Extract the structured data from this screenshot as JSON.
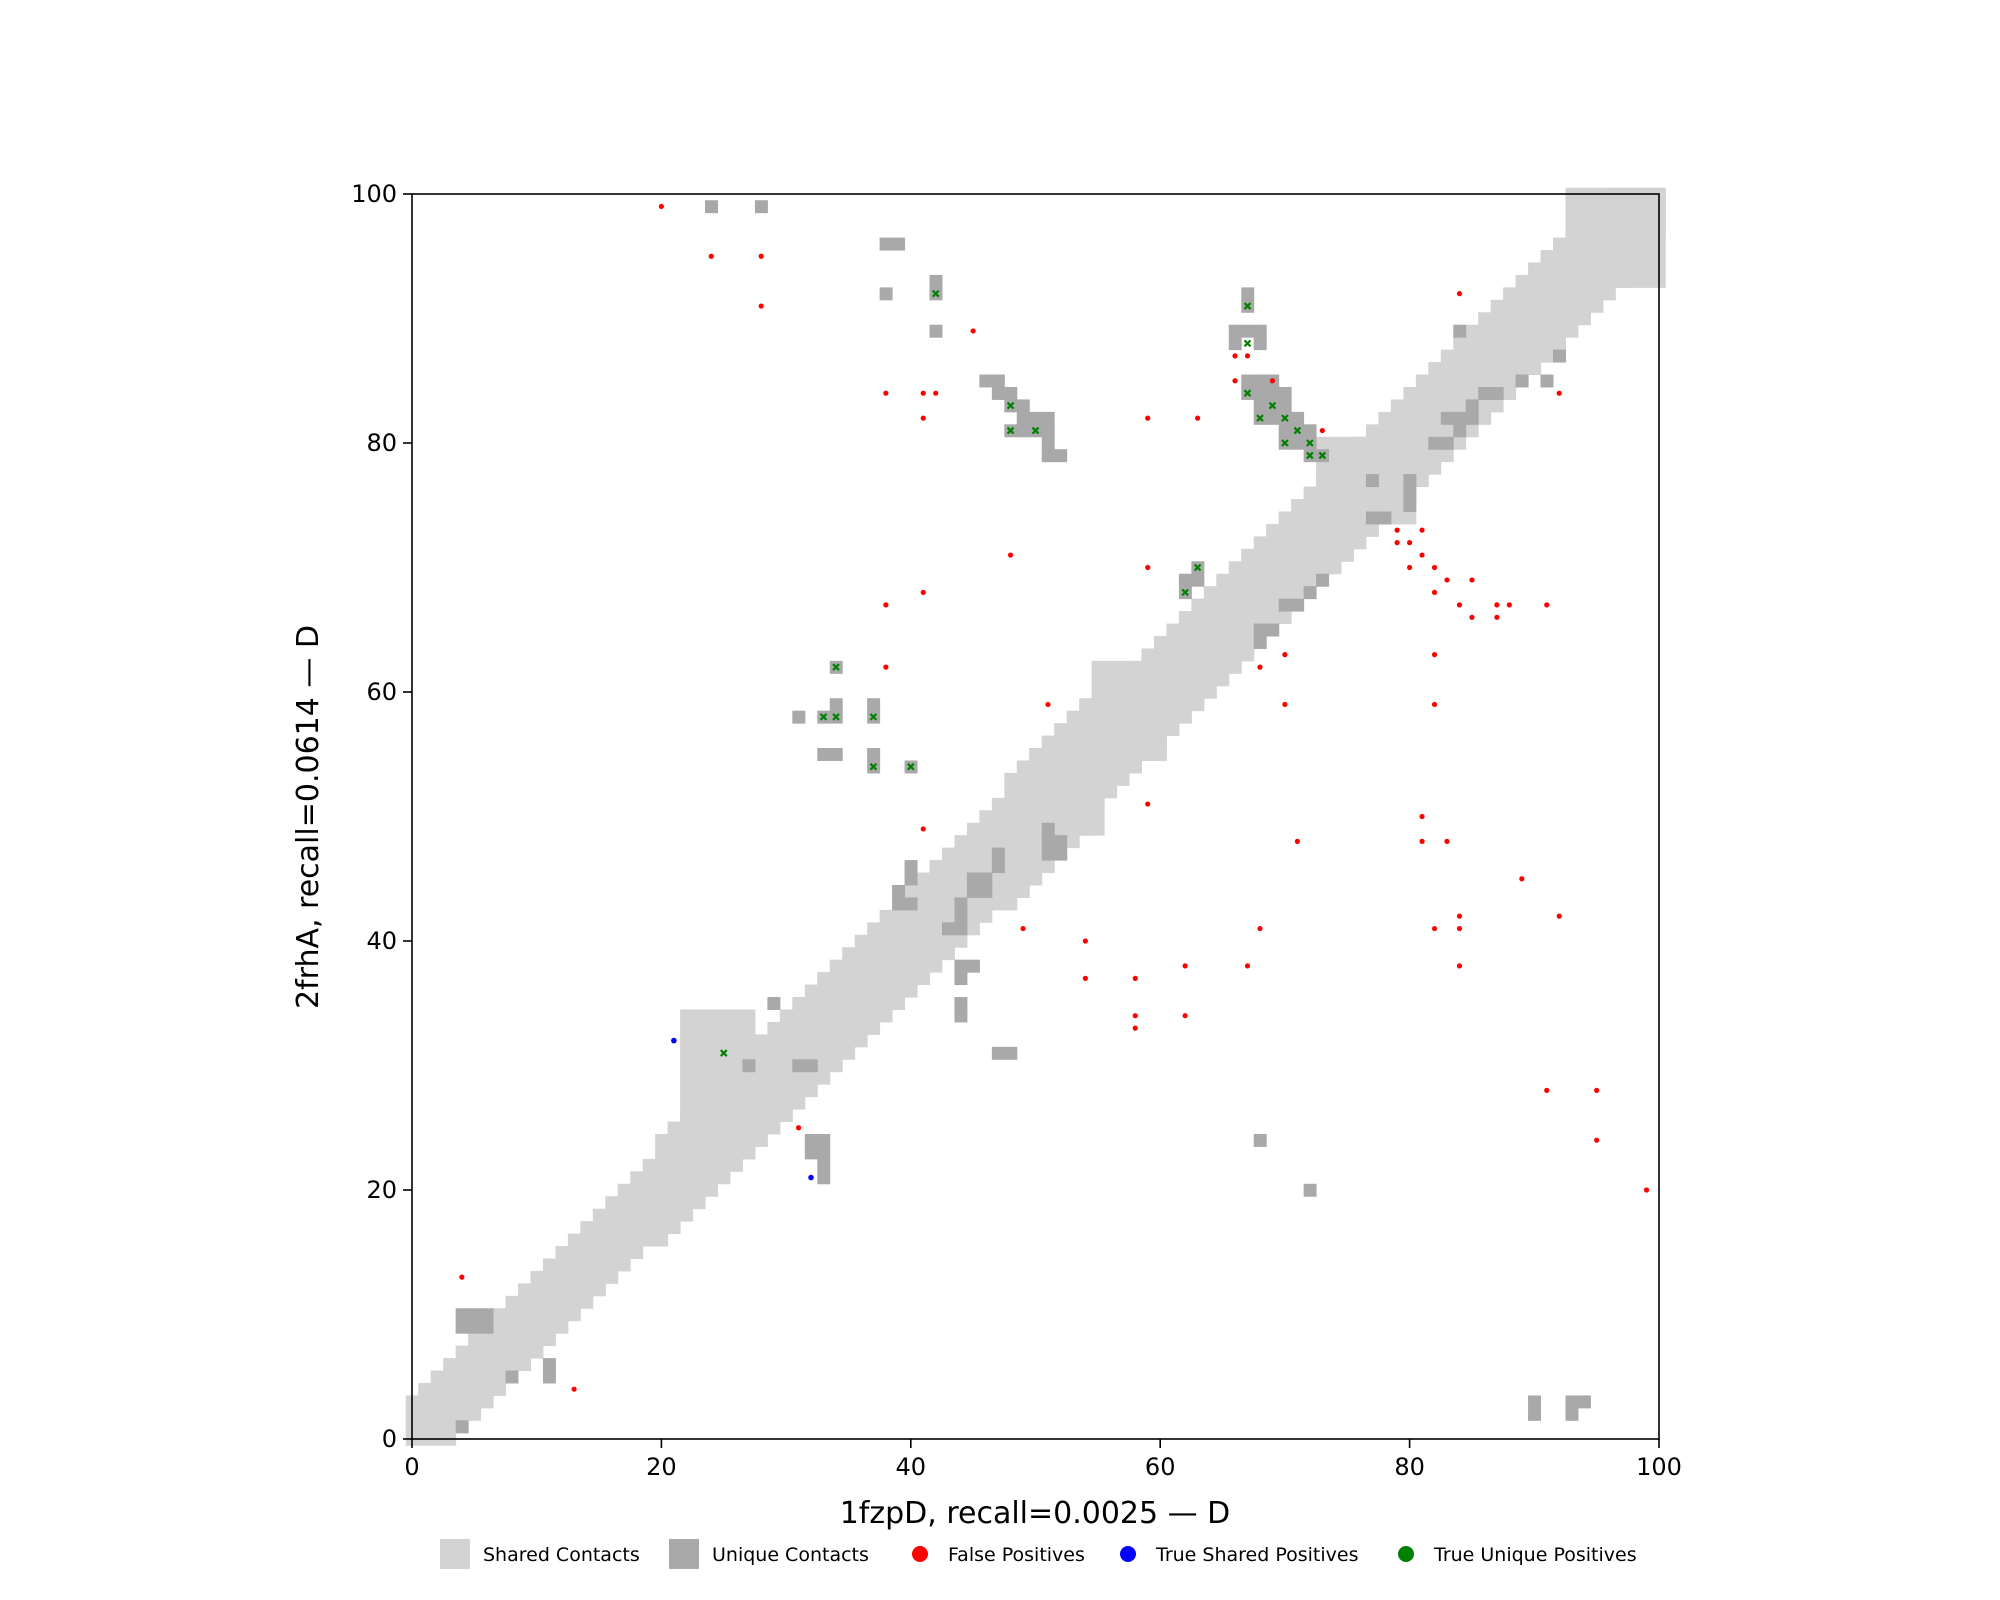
{
  "chart_data": {
    "type": "scatter",
    "title": "",
    "xlabel": "1fzpD, recall=0.0025 — D",
    "ylabel": "2frhA, recall=0.0614 — D",
    "xlim": [
      0,
      100
    ],
    "ylim": [
      0,
      100
    ],
    "xticks": [
      "0",
      "20",
      "40",
      "60",
      "80",
      "100"
    ],
    "yticks": [
      "0",
      "20",
      "40",
      "60",
      "80",
      "100"
    ],
    "grid": false,
    "legend_position": "bottom",
    "colors": {
      "shared": "#d3d3d3",
      "unique": "#a9a9a9",
      "false_positive": "#ff0000",
      "true_shared": "#0000ff",
      "true_unique": "#008000"
    },
    "legend": [
      {
        "label": "Shared Contacts",
        "kind": "square",
        "color": "#d3d3d3"
      },
      {
        "label": "Unique Contacts",
        "kind": "square",
        "color": "#a9a9a9"
      },
      {
        "label": "False Positives",
        "kind": "dot",
        "color": "#ff0000"
      },
      {
        "label": "True Shared Positives",
        "kind": "dot",
        "color": "#0000ff"
      },
      {
        "label": "True Unique Positives",
        "kind": "dot",
        "color": "#008000"
      }
    ],
    "diagonal_band": {
      "description": "shared contacts along diagonal, half-width in residues",
      "segments": [
        {
          "from": 0,
          "to": 20,
          "half_width": 3
        },
        {
          "from": 20,
          "to": 48,
          "half_width": 4
        },
        {
          "from": 48,
          "to": 55,
          "half_width": 5
        },
        {
          "from": 55,
          "to": 80,
          "half_width": 4
        },
        {
          "from": 80,
          "to": 100,
          "half_width": 4
        }
      ],
      "blocks": [
        [
          22,
          27,
          23,
          34
        ],
        [
          50,
          55,
          49,
          55
        ],
        [
          55,
          60,
          55,
          62
        ],
        [
          73,
          80,
          74,
          80
        ],
        [
          93,
          100,
          93,
          100
        ]
      ]
    },
    "unique_contacts": [
      [
        24,
        99
      ],
      [
        28,
        99
      ],
      [
        38,
        96
      ],
      [
        39,
        96
      ],
      [
        38,
        92
      ],
      [
        42,
        93
      ],
      [
        42,
        92
      ],
      [
        42,
        89
      ],
      [
        46,
        85
      ],
      [
        47,
        85
      ],
      [
        47,
        84
      ],
      [
        48,
        84
      ],
      [
        48,
        83
      ],
      [
        49,
        83
      ],
      [
        49,
        82
      ],
      [
        50,
        82
      ],
      [
        51,
        82
      ],
      [
        48,
        81
      ],
      [
        49,
        81
      ],
      [
        50,
        81
      ],
      [
        51,
        81
      ],
      [
        51,
        80
      ],
      [
        51,
        79
      ],
      [
        52,
        79
      ],
      [
        67,
        92
      ],
      [
        67,
        91
      ],
      [
        66,
        89
      ],
      [
        67,
        89
      ],
      [
        68,
        89
      ],
      [
        66,
        88
      ],
      [
        68,
        88
      ],
      [
        67,
        85
      ],
      [
        68,
        85
      ],
      [
        69,
        85
      ],
      [
        67,
        84
      ],
      [
        68,
        84
      ],
      [
        69,
        84
      ],
      [
        70,
        84
      ],
      [
        68,
        83
      ],
      [
        69,
        83
      ],
      [
        70,
        83
      ],
      [
        68,
        82
      ],
      [
        69,
        82
      ],
      [
        70,
        82
      ],
      [
        71,
        82
      ],
      [
        70,
        81
      ],
      [
        71,
        81
      ],
      [
        72,
        81
      ],
      [
        70,
        80
      ],
      [
        71,
        80
      ],
      [
        72,
        80
      ],
      [
        72,
        79
      ],
      [
        73,
        79
      ],
      [
        31,
        58
      ],
      [
        33,
        58
      ],
      [
        34,
        58
      ],
      [
        37,
        58
      ],
      [
        34,
        59
      ],
      [
        37,
        59
      ],
      [
        34,
        62
      ],
      [
        33,
        55
      ],
      [
        34,
        55
      ],
      [
        37,
        55
      ],
      [
        37,
        54
      ],
      [
        40,
        54
      ],
      [
        63,
        70
      ],
      [
        62,
        69
      ],
      [
        63,
        69
      ],
      [
        62,
        68
      ],
      [
        44,
        38
      ],
      [
        45,
        38
      ],
      [
        44,
        37
      ],
      [
        44,
        35
      ],
      [
        44,
        34
      ],
      [
        47,
        31
      ],
      [
        48,
        31
      ],
      [
        32,
        24
      ],
      [
        33,
        24
      ],
      [
        32,
        23
      ],
      [
        33,
        23
      ],
      [
        33,
        22
      ],
      [
        33,
        21
      ],
      [
        29,
        35
      ],
      [
        31,
        30
      ],
      [
        32,
        30
      ],
      [
        27,
        30
      ],
      [
        4,
        10
      ],
      [
        5,
        10
      ],
      [
        6,
        10
      ],
      [
        4,
        9
      ],
      [
        5,
        9
      ],
      [
        6,
        9
      ],
      [
        8,
        5
      ],
      [
        11,
        6
      ],
      [
        11,
        5
      ],
      [
        4,
        1
      ],
      [
        68,
        24
      ],
      [
        72,
        20
      ],
      [
        90,
        3
      ],
      [
        90,
        2
      ],
      [
        93,
        3
      ],
      [
        94,
        3
      ],
      [
        93,
        2
      ],
      [
        84,
        89
      ],
      [
        92,
        87
      ],
      [
        91,
        85
      ],
      [
        40,
        46
      ],
      [
        40,
        45
      ],
      [
        39,
        44
      ],
      [
        39,
        43
      ],
      [
        40,
        43
      ],
      [
        45,
        45
      ],
      [
        46,
        45
      ],
      [
        45,
        44
      ],
      [
        46,
        44
      ],
      [
        47,
        46
      ],
      [
        47,
        47
      ],
      [
        51,
        47
      ],
      [
        52,
        47
      ],
      [
        52,
        48
      ],
      [
        51,
        48
      ],
      [
        51,
        49
      ],
      [
        43,
        41
      ],
      [
        44,
        41
      ],
      [
        44,
        42
      ],
      [
        44,
        43
      ],
      [
        77,
        77
      ],
      [
        80,
        76
      ],
      [
        80,
        77
      ],
      [
        80,
        75
      ],
      [
        78,
        74
      ],
      [
        77,
        74
      ],
      [
        70,
        67
      ],
      [
        71,
        67
      ],
      [
        72,
        68
      ],
      [
        73,
        69
      ],
      [
        68,
        65
      ],
      [
        69,
        65
      ],
      [
        68,
        64
      ],
      [
        83,
        82
      ],
      [
        84,
        82
      ],
      [
        85,
        83
      ],
      [
        86,
        84
      ],
      [
        87,
        84
      ],
      [
        89,
        85
      ],
      [
        82,
        80
      ],
      [
        83,
        80
      ],
      [
        85,
        82
      ],
      [
        84,
        81
      ]
    ],
    "false_positives": [
      [
        20,
        99
      ],
      [
        24,
        95
      ],
      [
        28,
        95
      ],
      [
        28,
        91
      ],
      [
        45,
        89
      ],
      [
        38,
        84
      ],
      [
        41,
        84
      ],
      [
        42,
        84
      ],
      [
        41,
        82
      ],
      [
        59,
        82
      ],
      [
        63,
        82
      ],
      [
        66,
        87
      ],
      [
        67,
        87
      ],
      [
        66,
        85
      ],
      [
        69,
        85
      ],
      [
        73,
        81
      ],
      [
        84,
        92
      ],
      [
        92,
        84
      ],
      [
        48,
        71
      ],
      [
        38,
        67
      ],
      [
        41,
        68
      ],
      [
        38,
        62
      ],
      [
        51,
        59
      ],
      [
        59,
        70
      ],
      [
        79,
        73
      ],
      [
        81,
        73
      ],
      [
        79,
        72
      ],
      [
        80,
        72
      ],
      [
        81,
        71
      ],
      [
        80,
        70
      ],
      [
        82,
        70
      ],
      [
        83,
        69
      ],
      [
        85,
        69
      ],
      [
        82,
        68
      ],
      [
        84,
        67
      ],
      [
        87,
        67
      ],
      [
        88,
        67
      ],
      [
        91,
        67
      ],
      [
        85,
        66
      ],
      [
        87,
        66
      ],
      [
        68,
        62
      ],
      [
        70,
        63
      ],
      [
        82,
        63
      ],
      [
        70,
        59
      ],
      [
        82,
        59
      ],
      [
        41,
        49
      ],
      [
        59,
        51
      ],
      [
        71,
        48
      ],
      [
        81,
        50
      ],
      [
        81,
        48
      ],
      [
        83,
        48
      ],
      [
        89,
        45
      ],
      [
        92,
        42
      ],
      [
        84,
        42
      ],
      [
        82,
        41
      ],
      [
        84,
        41
      ],
      [
        68,
        41
      ],
      [
        49,
        41
      ],
      [
        54,
        40
      ],
      [
        62,
        38
      ],
      [
        67,
        38
      ],
      [
        84,
        38
      ],
      [
        54,
        37
      ],
      [
        58,
        37
      ],
      [
        58,
        34
      ],
      [
        62,
        34
      ],
      [
        58,
        33
      ],
      [
        91,
        28
      ],
      [
        95,
        28
      ],
      [
        95,
        24
      ],
      [
        99,
        20
      ],
      [
        31,
        25
      ],
      [
        4,
        13
      ],
      [
        13,
        4
      ]
    ],
    "true_shared_positives": [
      [
        21,
        32
      ],
      [
        32,
        21
      ]
    ],
    "true_unique_positives": [
      [
        42,
        92
      ],
      [
        48,
        83
      ],
      [
        48,
        81
      ],
      [
        50,
        81
      ],
      [
        67,
        91
      ],
      [
        67,
        88
      ],
      [
        67,
        84
      ],
      [
        68,
        82
      ],
      [
        69,
        83
      ],
      [
        70,
        82
      ],
      [
        71,
        81
      ],
      [
        70,
        80
      ],
      [
        72,
        80
      ],
      [
        72,
        79
      ],
      [
        73,
        79
      ],
      [
        34,
        62
      ],
      [
        33,
        58
      ],
      [
        34,
        58
      ],
      [
        37,
        58
      ],
      [
        37,
        54
      ],
      [
        40,
        54
      ],
      [
        63,
        70
      ],
      [
        62,
        68
      ],
      [
        25,
        31
      ]
    ]
  }
}
